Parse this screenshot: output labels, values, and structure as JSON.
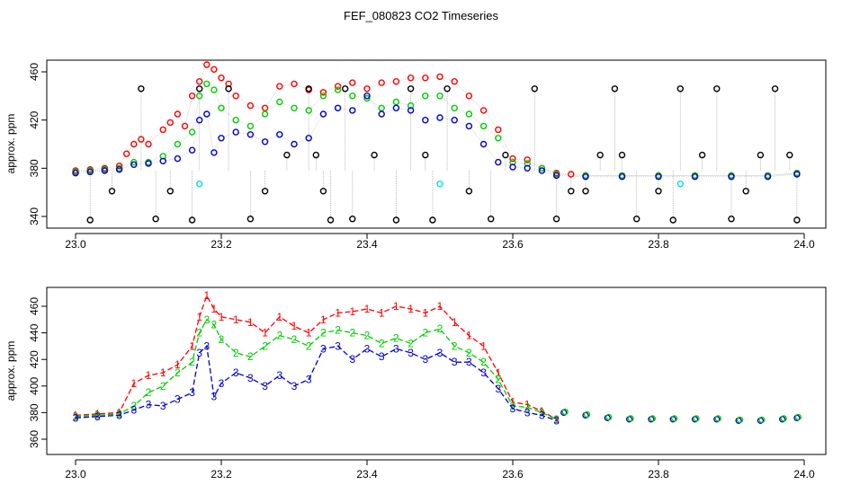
{
  "chart_data": [
    {
      "type": "scatter",
      "title": "FEF_080823  CO2 Timeseries",
      "xlabel": "",
      "ylabel": "approx. ppm",
      "xlim": [
        23.0,
        24.0
      ],
      "ylim": [
        334,
        470
      ],
      "xticks": [
        "23.0",
        "23.2",
        "23.4",
        "23.6",
        "23.8",
        "24.0"
      ],
      "yticks": [
        "340",
        "380",
        "420",
        "460"
      ],
      "series": [
        {
          "color": "#ff0000",
          "marker": "circle",
          "x": [
            23.0,
            23.02,
            23.04,
            23.06,
            23.07,
            23.08,
            23.09,
            23.1,
            23.12,
            23.13,
            23.14,
            23.15,
            23.16,
            23.17,
            23.18,
            23.19,
            23.2,
            23.21,
            23.22,
            23.24,
            23.26,
            23.28,
            23.3,
            23.32,
            23.34,
            23.36,
            23.38,
            23.4,
            23.42,
            23.44,
            23.46,
            23.48,
            23.5,
            23.52,
            23.54,
            23.56,
            23.58,
            23.6,
            23.62,
            23.64,
            23.66,
            23.68,
            23.7,
            23.75,
            23.8,
            23.85,
            23.9,
            23.95,
            23.99
          ],
          "y": [
            378,
            379,
            380,
            382,
            392,
            400,
            404,
            400,
            412,
            418,
            425,
            415,
            440,
            452,
            466,
            462,
            455,
            450,
            440,
            432,
            430,
            448,
            450,
            445,
            443,
            448,
            451,
            446,
            451,
            452,
            455,
            455,
            456,
            452,
            440,
            428,
            412,
            388,
            387,
            380,
            376,
            375,
            374,
            374,
            374,
            374,
            374,
            374,
            376
          ]
        },
        {
          "color": "#00cc00",
          "marker": "circle",
          "x": [
            23.0,
            23.02,
            23.04,
            23.06,
            23.08,
            23.1,
            23.12,
            23.14,
            23.16,
            23.17,
            23.18,
            23.19,
            23.2,
            23.22,
            23.24,
            23.26,
            23.28,
            23.3,
            23.32,
            23.34,
            23.36,
            23.38,
            23.4,
            23.42,
            23.44,
            23.46,
            23.48,
            23.5,
            23.52,
            23.54,
            23.56,
            23.58,
            23.6,
            23.62,
            23.64,
            23.66,
            23.7,
            23.75,
            23.8,
            23.85,
            23.9,
            23.95,
            23.99
          ],
          "y": [
            377,
            378,
            379,
            380,
            385,
            385,
            390,
            400,
            410,
            440,
            450,
            445,
            430,
            420,
            415,
            425,
            435,
            430,
            428,
            440,
            445,
            440,
            438,
            430,
            435,
            432,
            440,
            440,
            430,
            425,
            415,
            405,
            385,
            384,
            380,
            375,
            374,
            374,
            374,
            374,
            374,
            374,
            376
          ]
        },
        {
          "color": "#0000cc",
          "marker": "circle",
          "x": [
            23.0,
            23.02,
            23.04,
            23.06,
            23.08,
            23.1,
            23.12,
            23.14,
            23.16,
            23.17,
            23.18,
            23.19,
            23.2,
            23.22,
            23.24,
            23.26,
            23.28,
            23.3,
            23.32,
            23.34,
            23.36,
            23.38,
            23.4,
            23.42,
            23.44,
            23.46,
            23.48,
            23.5,
            23.52,
            23.54,
            23.56,
            23.58,
            23.6,
            23.62,
            23.64,
            23.66,
            23.7,
            23.75,
            23.8,
            23.85,
            23.9,
            23.95,
            23.99
          ],
          "y": [
            376,
            377,
            378,
            379,
            383,
            384,
            386,
            388,
            395,
            420,
            425,
            393,
            405,
            410,
            408,
            402,
            408,
            400,
            405,
            425,
            430,
            428,
            440,
            425,
            430,
            428,
            420,
            422,
            420,
            415,
            400,
            385,
            381,
            380,
            378,
            374,
            373,
            373,
            373,
            373,
            373,
            373,
            375
          ]
        },
        {
          "color": "#000000",
          "marker": "circle",
          "x": [
            23.02,
            23.05,
            23.09,
            23.11,
            23.13,
            23.16,
            23.17,
            23.21,
            23.24,
            23.26,
            23.29,
            23.32,
            23.33,
            23.34,
            23.35,
            23.37,
            23.38,
            23.41,
            23.44,
            23.46,
            23.48,
            23.49,
            23.51,
            23.54,
            23.57,
            23.59,
            23.63,
            23.66,
            23.68,
            23.7,
            23.72,
            23.74,
            23.75,
            23.77,
            23.8,
            23.82,
            23.83,
            23.86,
            23.88,
            23.9,
            23.92,
            23.94,
            23.96,
            23.98,
            23.99
          ],
          "y": [
            337,
            361,
            446,
            338,
            361,
            337,
            446,
            446,
            338,
            361,
            391,
            446,
            391,
            361,
            337,
            446,
            338,
            391,
            337,
            446,
            391,
            337,
            446,
            361,
            338,
            391,
            446,
            338,
            361,
            361,
            391,
            446,
            391,
            338,
            361,
            337,
            446,
            391,
            446,
            338,
            361,
            391,
            446,
            391,
            337
          ]
        },
        {
          "color": "#00e0e0",
          "marker": "circle",
          "x": [
            23.17,
            23.5,
            23.83
          ],
          "y": [
            367,
            367,
            367
          ]
        }
      ]
    },
    {
      "type": "line",
      "title": "",
      "xlabel": "",
      "ylabel": "approx. ppm",
      "xlim": [
        23.0,
        24.0
      ],
      "ylim": [
        350,
        470
      ],
      "xticks": [
        "23.0",
        "23.2",
        "23.4",
        "23.6",
        "23.8",
        "24.0"
      ],
      "yticks": [
        "360",
        "380",
        "400",
        "420",
        "440",
        "460"
      ],
      "series": [
        {
          "color": "#ff0000",
          "label": "1",
          "x": [
            23.0,
            23.03,
            23.06,
            23.08,
            23.1,
            23.12,
            23.14,
            23.16,
            23.17,
            23.18,
            23.19,
            23.2,
            23.22,
            23.24,
            23.26,
            23.28,
            23.3,
            23.32,
            23.34,
            23.36,
            23.38,
            23.4,
            23.42,
            23.44,
            23.46,
            23.48,
            23.5,
            23.52,
            23.54,
            23.56,
            23.58,
            23.6,
            23.62,
            23.64,
            23.66
          ],
          "y": [
            378,
            379,
            380,
            402,
            408,
            410,
            416,
            430,
            452,
            468,
            458,
            452,
            450,
            448,
            440,
            452,
            445,
            440,
            450,
            455,
            456,
            458,
            455,
            460,
            458,
            455,
            460,
            448,
            438,
            430,
            410,
            388,
            386,
            381,
            375
          ]
        },
        {
          "color": "#00cc00",
          "label": "2",
          "x": [
            23.0,
            23.03,
            23.06,
            23.08,
            23.1,
            23.12,
            23.14,
            23.16,
            23.17,
            23.18,
            23.19,
            23.2,
            23.22,
            23.24,
            23.26,
            23.28,
            23.3,
            23.32,
            23.34,
            23.36,
            23.38,
            23.4,
            23.42,
            23.44,
            23.46,
            23.48,
            23.5,
            23.52,
            23.54,
            23.56,
            23.58,
            23.6,
            23.62,
            23.64,
            23.66
          ],
          "y": [
            377,
            378,
            379,
            385,
            395,
            400,
            410,
            418,
            440,
            450,
            446,
            435,
            425,
            422,
            430,
            438,
            435,
            430,
            440,
            442,
            440,
            438,
            432,
            436,
            432,
            440,
            443,
            430,
            425,
            418,
            405,
            385,
            384,
            380,
            375
          ]
        },
        {
          "color": "#0000cc",
          "label": "3",
          "x": [
            23.0,
            23.03,
            23.06,
            23.08,
            23.1,
            23.12,
            23.14,
            23.16,
            23.17,
            23.18,
            23.19,
            23.2,
            23.22,
            23.24,
            23.26,
            23.28,
            23.3,
            23.32,
            23.34,
            23.36,
            23.38,
            23.4,
            23.42,
            23.44,
            23.46,
            23.48,
            23.5,
            23.52,
            23.54,
            23.56,
            23.58,
            23.6,
            23.62,
            23.64,
            23.66
          ],
          "y": [
            376,
            377,
            378,
            382,
            386,
            385,
            390,
            395,
            425,
            430,
            392,
            402,
            410,
            406,
            400,
            408,
            400,
            405,
            428,
            430,
            420,
            428,
            422,
            428,
            425,
            420,
            425,
            418,
            418,
            410,
            398,
            383,
            380,
            378,
            374
          ]
        }
      ],
      "tail": {
        "x": [
          23.67,
          23.7,
          23.73,
          23.76,
          23.79,
          23.82,
          23.85,
          23.88,
          23.91,
          23.94,
          23.97,
          23.99
        ],
        "y": [
          380,
          378,
          376,
          375,
          375,
          375,
          375,
          375,
          374,
          374,
          375,
          376
        ]
      }
    }
  ]
}
